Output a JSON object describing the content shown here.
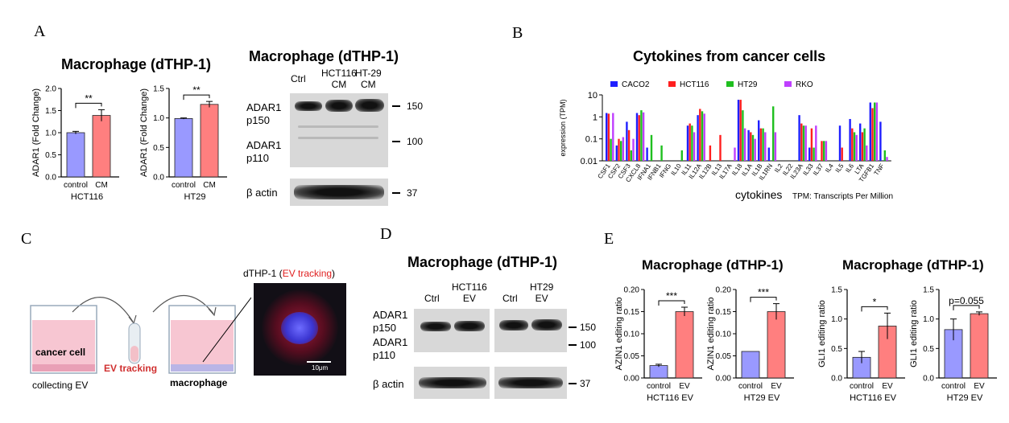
{
  "panel_labels": {
    "a": "A",
    "b": "B",
    "c": "C",
    "d": "D",
    "e": "E"
  },
  "panel_a": {
    "chart_title": "Macrophage (dTHP-1)",
    "blot": {
      "title": "Macrophage (dTHP-1)",
      "lanes": [
        "Ctrl",
        "HCT116\nCM",
        "HT-29\nCM"
      ],
      "target_p150": "ADAR1\np150",
      "target_p110": "ADAR1\np110",
      "loading": "β actin",
      "markers": [
        "150",
        "100",
        "37"
      ]
    }
  },
  "panel_b": {
    "title": "Cytokines from cancer cells",
    "xlabel": "cytokines",
    "ylabel": "expression (TPM)",
    "note": "TPM: Transcripts Per Million"
  },
  "panel_c": {
    "caption_prefix": "dTHP-1 (",
    "caption_highlight": "EV tracking",
    "caption_suffix": ")",
    "cancer_cell": "cancer cell",
    "ev_tracking": "EV tracking",
    "macrophage": "macrophage",
    "collecting": "collecting EV",
    "scalebar": "10μm"
  },
  "panel_d": {
    "title": "Macrophage (dTHP-1)",
    "lanes": [
      "Ctrl",
      "HCT116\nEV",
      "Ctrl",
      "HT29\nEV"
    ],
    "target_p150": "ADAR1\np150",
    "target_p110": "ADAR1\np110",
    "loading": "β actin",
    "markers": [
      "150",
      "100",
      "37"
    ]
  },
  "panel_e": {
    "title_left": "Macrophage (dTHP-1)",
    "title_right": "Macrophage (dTHP-1)"
  },
  "colors": {
    "control": "#9999ff",
    "treated": "#ff7f7f",
    "caco2": "#1f1fff",
    "hct116": "#ff1f1f",
    "ht29": "#1fbf1f",
    "rko": "#bf3fff"
  },
  "chart_data": [
    {
      "type": "bar",
      "categories": [
        "control",
        "CM"
      ],
      "values": [
        1.0,
        1.39
      ],
      "errors": [
        0.03,
        0.13
      ],
      "ylabel": "ADAR1 (Fold Change)",
      "xlabel": "HCT116",
      "ylim": [
        0,
        2.0
      ],
      "yticks": [
        "0.0",
        "0.5",
        "1.0",
        "1.5",
        "2.0"
      ],
      "significance": "**"
    },
    {
      "type": "bar",
      "categories": [
        "control",
        "CM"
      ],
      "values": [
        0.99,
        1.23
      ],
      "errors": [
        0.01,
        0.05
      ],
      "ylabel": "ADAR1 (Fold Change)",
      "xlabel": "HT29",
      "ylim": [
        0,
        1.5
      ],
      "yticks": [
        "0.0",
        "0.5",
        "1.0",
        "1.5"
      ],
      "significance": "**"
    },
    {
      "type": "bar",
      "log_y": true,
      "ylim": [
        0.01,
        10
      ],
      "yticks": [
        "10",
        "1",
        "0.1",
        "0.01"
      ],
      "categories": [
        "CSF1",
        "CSF2",
        "CSF3",
        "CXCL8",
        "IFNA1",
        "IFNB1",
        "IFNG",
        "IL10",
        "IL11",
        "IL12A",
        "IL12B",
        "IL13",
        "IL17A",
        "IL18",
        "IL1A",
        "IL1B",
        "IL1RN",
        "IL2",
        "IL22",
        "IL23A",
        "IL33",
        "IL37",
        "IL4",
        "IL5",
        "IL6",
        "LTA",
        "TGFB1",
        "TNF"
      ],
      "series": [
        {
          "name": "CACO2",
          "values": [
            1.5,
            0.05,
            0.6,
            1.5,
            0.04,
            0,
            0,
            0,
            0.4,
            1.2,
            0,
            0,
            0,
            6,
            0.25,
            0.7,
            0.04,
            0,
            0,
            1.2,
            0.04,
            0,
            0,
            0.4,
            0.8,
            0.5,
            4.5,
            0.6
          ]
        },
        {
          "name": "HCT116",
          "values": [
            1.4,
            0.1,
            0.25,
            1.2,
            0,
            0,
            0,
            0,
            0.5,
            2.3,
            0.05,
            0.15,
            0,
            6,
            0.2,
            0.3,
            0,
            0,
            0,
            0.5,
            0.3,
            0.08,
            0,
            0.04,
            0.3,
            0.2,
            2.5,
            0
          ]
        },
        {
          "name": "HT29",
          "values": [
            0.1,
            0.08,
            0.03,
            2.0,
            0.15,
            0.05,
            0,
            0.03,
            0.4,
            1.8,
            0,
            0,
            0,
            2.0,
            0.15,
            0.3,
            3.0,
            0,
            0,
            0.4,
            0.04,
            0.08,
            0,
            0,
            0.2,
            0.3,
            4.5,
            0.03
          ]
        },
        {
          "name": "RKO",
          "values": [
            1.5,
            0.12,
            0.1,
            1.6,
            0,
            0,
            0,
            0,
            0.2,
            1.4,
            0,
            0,
            0.04,
            0.3,
            0.1,
            0.2,
            0.2,
            0,
            0,
            0.4,
            0.4,
            0.08,
            0,
            0,
            0.15,
            0.05,
            4.5,
            0.015
          ]
        }
      ],
      "legend_placement": "top"
    },
    {
      "type": "bar",
      "categories": [
        "control",
        "EV"
      ],
      "values": [
        0.028,
        0.15
      ],
      "errors": [
        0.003,
        0.01
      ],
      "ylabel": "AZIN1 editing ratio",
      "xlabel": "HCT116 EV",
      "ylim": [
        0,
        0.2
      ],
      "yticks": [
        "0.00",
        "0.05",
        "0.10",
        "0.15",
        "0.20"
      ],
      "significance": "***"
    },
    {
      "type": "bar",
      "categories": [
        "control",
        "EV"
      ],
      "values": [
        0.06,
        0.15
      ],
      "errors": [
        0,
        0.018
      ],
      "ylabel": "AZIN1 editing ratio",
      "xlabel": "HT29 EV",
      "ylim": [
        0,
        0.2
      ],
      "yticks": [
        "0.00",
        "0.05",
        "0.10",
        "0.15",
        "0.20"
      ],
      "significance": "***"
    },
    {
      "type": "bar",
      "categories": [
        "control",
        "EV"
      ],
      "values": [
        0.35,
        0.88
      ],
      "errors": [
        0.1,
        0.22
      ],
      "ylabel": "GLI1 editing ratio",
      "xlabel": "HCT116 EV",
      "ylim": [
        0,
        1.5
      ],
      "yticks": [
        "0.0",
        "0.5",
        "1.0",
        "1.5"
      ],
      "significance": "*"
    },
    {
      "type": "bar",
      "categories": [
        "control",
        "EV"
      ],
      "values": [
        0.82,
        1.09
      ],
      "errors": [
        0.18,
        0.03
      ],
      "ylabel": "GLI1 editing ratio",
      "xlabel": "HT29 EV",
      "ylim": [
        0,
        1.5
      ],
      "yticks": [
        "0.0",
        "0.5",
        "1.0",
        "1.5"
      ],
      "significance": "p=0.055"
    }
  ]
}
